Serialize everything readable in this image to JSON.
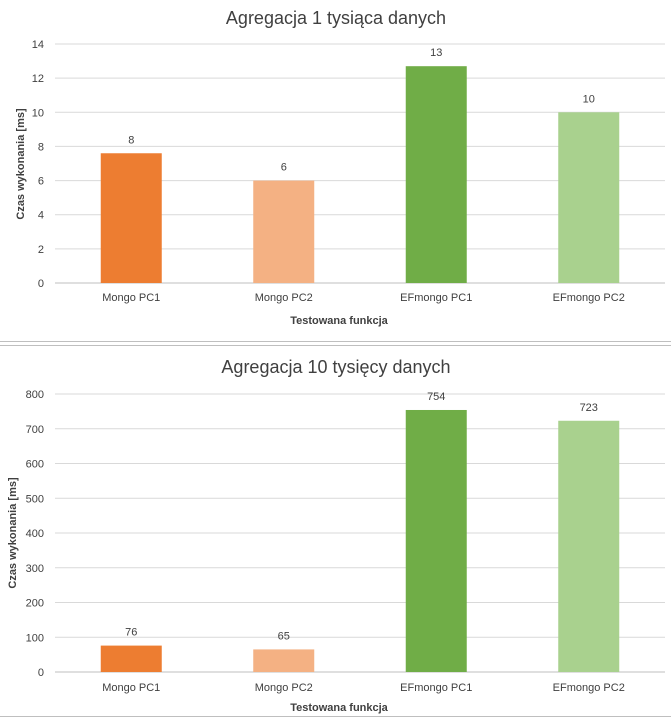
{
  "chart_data": [
    {
      "type": "bar",
      "title": "Agregacja 1 tysiąca danych",
      "xlabel": "Testowana funkcja",
      "ylabel": "Czas wykonania [ms]",
      "categories": [
        "Mongo PC1",
        "Mongo PC2",
        "EFmongo PC1",
        "EFmongo PC2"
      ],
      "values": [
        7.6,
        6,
        12.7,
        10
      ],
      "data_labels": [
        "8",
        "6",
        "13",
        "10"
      ],
      "colors": [
        "#ed7d31",
        "#f4b183",
        "#70ad47",
        "#a9d18e"
      ],
      "ylim": [
        0,
        14
      ],
      "yticks": [
        0,
        2,
        4,
        6,
        8,
        10,
        12,
        14
      ],
      "grid": true,
      "legend": "none"
    },
    {
      "type": "bar",
      "title": "Agregacja 10 tysięcy danych",
      "xlabel": "Testowana funkcja",
      "ylabel": "Czas wykonania [ms]",
      "categories": [
        "Mongo PC1",
        "Mongo PC2",
        "EFmongo  PC1",
        "EFmongo  PC2"
      ],
      "values": [
        76,
        65,
        754,
        723
      ],
      "data_labels": [
        "76",
        "65",
        "754",
        "723"
      ],
      "colors": [
        "#ed7d31",
        "#f4b183",
        "#70ad47",
        "#a9d18e"
      ],
      "ylim": [
        0,
        800
      ],
      "yticks": [
        0,
        100,
        200,
        300,
        400,
        500,
        600,
        700,
        800
      ],
      "grid": true,
      "legend": "none"
    }
  ]
}
